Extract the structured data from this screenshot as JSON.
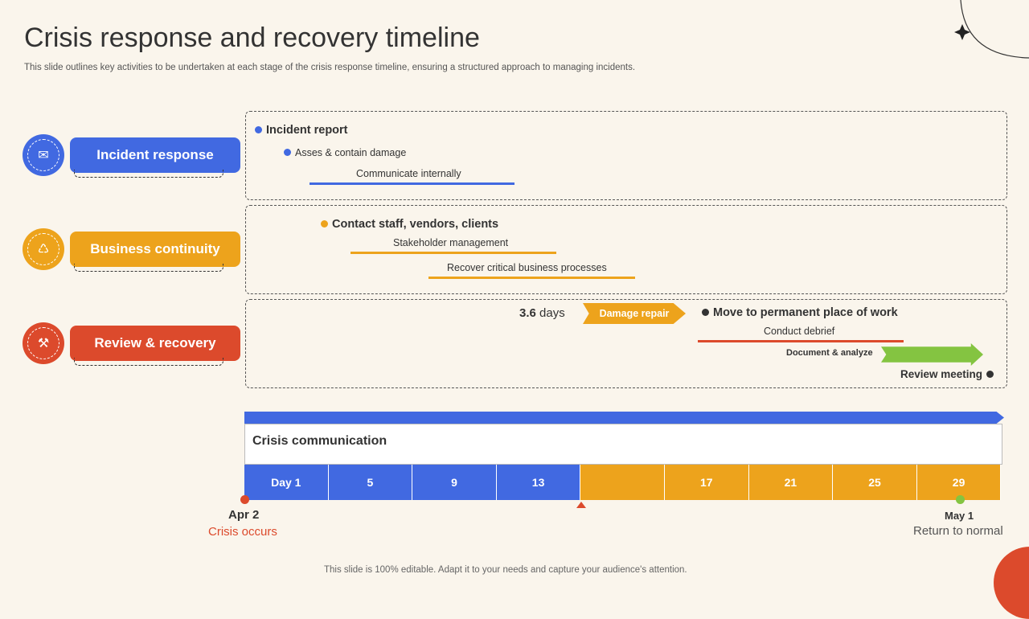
{
  "title": "Crisis response and recovery timeline",
  "subtitle": "This slide outlines key activities to be undertaken at each stage of the crisis response timeline, ensuring a structured approach to managing incidents.",
  "colors": {
    "blue": "#4169e1",
    "orange": "#eda31c",
    "red": "#dc4a2c",
    "green": "#84c441",
    "dark": "#333333"
  },
  "stages": [
    {
      "label": "Incident response",
      "icon": "email-shield-icon"
    },
    {
      "label": "Business continuity",
      "icon": "chart-cycle-icon"
    },
    {
      "label": "Review & recovery",
      "icon": "wrench-icon"
    }
  ],
  "incident": {
    "report": "Incident report",
    "assess": "Asses & contain damage",
    "communicate": "Communicate  internally"
  },
  "continuity": {
    "contact": "Contact staff, vendors, clients",
    "stakeholder": "Stakeholder management",
    "recover": "Recover  critical business processes"
  },
  "review": {
    "days_num": "3.6",
    "days_unit": "days",
    "damage": "Damage repair",
    "move": "Move to permanent place of work",
    "debrief": "Conduct debrief",
    "document": "Document & analyze",
    "meeting": "Review meeting"
  },
  "timeline": {
    "header": "Crisis communication",
    "days": [
      "Day 1",
      "5",
      "9",
      "13",
      "",
      "17",
      "21",
      "25",
      "29"
    ],
    "start_date": "Apr 2",
    "start_label": "Crisis occurs",
    "end_date": "May 1",
    "end_label": "Return to normal"
  },
  "footer": "This slide is 100% editable. Adapt it to your needs and capture your audience's attention."
}
